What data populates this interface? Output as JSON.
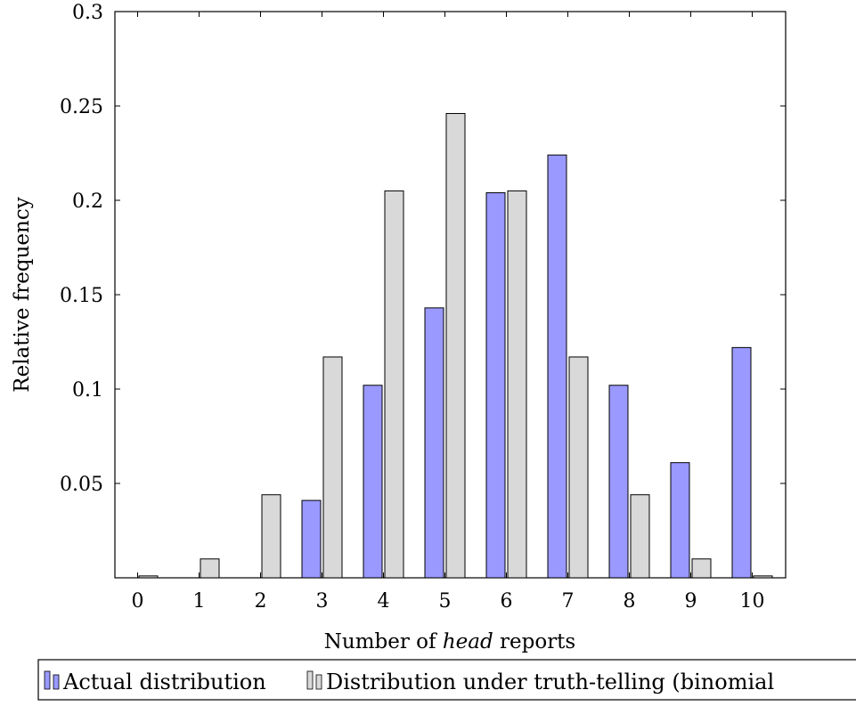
{
  "chart_data": {
    "type": "bar",
    "xlabel_parts": [
      "Number of ",
      "head",
      " reports"
    ],
    "ylabel": "Relative frequency",
    "categories": [
      "0",
      "1",
      "2",
      "3",
      "4",
      "5",
      "6",
      "7",
      "8",
      "9",
      "10"
    ],
    "series": [
      {
        "name": "Actual distribution",
        "color": "#9999ff",
        "values": [
          0,
          0,
          0,
          0.041,
          0.102,
          0.143,
          0.204,
          0.224,
          0.102,
          0.061,
          0.122
        ]
      },
      {
        "name": "Distribution under truth-telling (binomial",
        "color": "#d9d9d9",
        "values": [
          0.001,
          0.01,
          0.044,
          0.117,
          0.205,
          0.246,
          0.205,
          0.117,
          0.044,
          0.01,
          0.001
        ]
      }
    ],
    "ylim": [
      0,
      0.3
    ],
    "yticks": [
      0.05,
      0.1,
      0.15,
      0.2,
      0.25,
      0.3
    ],
    "ytick_labels": [
      "0.05",
      "0.1",
      "0.15",
      "0.2",
      "0.25",
      "0.3"
    ],
    "grid": false,
    "legend_position": "bottom"
  }
}
